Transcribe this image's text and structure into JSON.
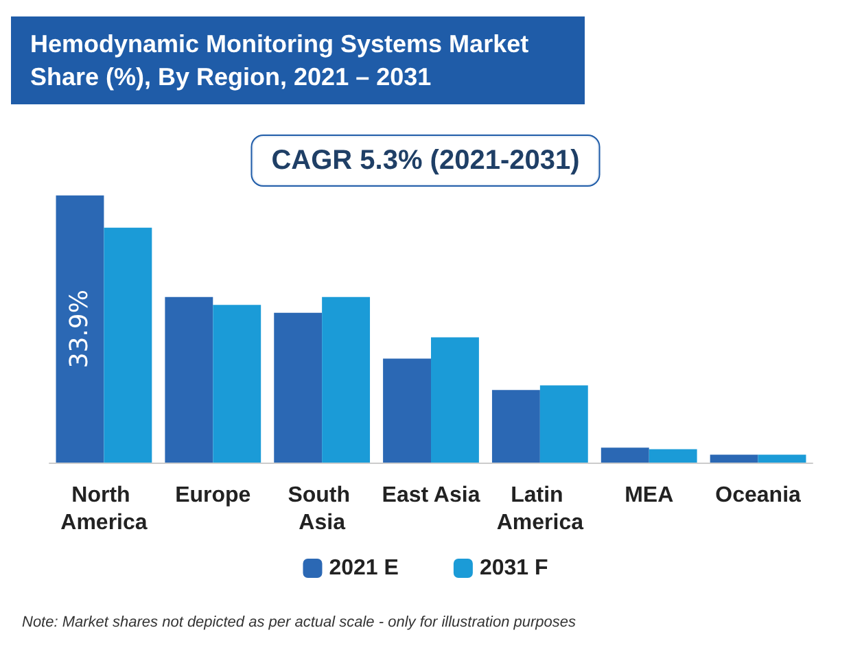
{
  "chart_data": {
    "type": "bar",
    "title": "Hemodynamic Monitoring Systems Market Share (%), By Region, 2021 – 2031",
    "categories": [
      "North America",
      "Europe",
      "South Asia",
      "East Asia",
      "Latin America",
      "MEA",
      "Oceania"
    ],
    "series": [
      {
        "name": "2021 E",
        "color": "#2b68b4",
        "values": [
          33.9,
          21.0,
          19.0,
          13.2,
          9.2,
          1.9,
          1.0
        ],
        "value_labels": [
          "33.9%",
          null,
          null,
          null,
          null,
          null,
          null
        ]
      },
      {
        "name": "2031 F",
        "color": "#1b9bd7",
        "values": [
          29.8,
          20.0,
          21.0,
          15.9,
          9.8,
          1.7,
          1.0
        ]
      }
    ],
    "legend": "bottom",
    "annotations": [
      "CAGR 5.3% (2021-2031)",
      "Note: Market shares not depicted as per actual scale - only for illustration purposes"
    ]
  }
}
